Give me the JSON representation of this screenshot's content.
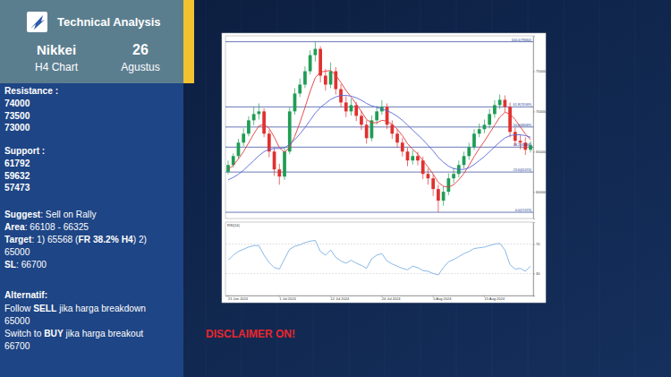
{
  "header": {
    "title": "Technical Analysis",
    "instrument": "Nikkei",
    "timeframe": "H4 Chart",
    "day": 26,
    "month": "Agustus"
  },
  "panel": {
    "resistance": {
      "label": "Resistance :",
      "values": [
        74000,
        73500,
        73000
      ]
    },
    "support": {
      "label": "Support :",
      "values": [
        61792,
        59632,
        57473
      ]
    },
    "suggestion": {
      "lines": [
        [
          {
            "text": "Suggest",
            "bold": true
          },
          {
            "text": ": Sell on Rally",
            "bold": false
          }
        ],
        [
          {
            "text": "Area",
            "bold": true
          },
          {
            "text": ": 66108 - 66325",
            "bold": false
          }
        ],
        [
          {
            "text": "Target",
            "bold": true
          },
          {
            "text": ": 1) 65568 (",
            "bold": false
          },
          {
            "text": "FR 38.2% H4",
            "bold": true
          },
          {
            "text": ") 2)",
            "bold": false
          }
        ],
        [
          {
            "text": "65000",
            "bold": false
          }
        ],
        [
          {
            "text": "SL",
            "bold": true
          },
          {
            "text": ": 66700",
            "bold": false
          }
        ]
      ]
    },
    "alternative": {
      "label": "Alternatif:",
      "lines": [
        [
          {
            "text": "Follow ",
            "bold": false
          },
          {
            "text": "SELL",
            "bold": true
          },
          {
            "text": " jika harga breakdown",
            "bold": false
          }
        ],
        [
          {
            "text": "65000",
            "bold": false
          }
        ],
        [
          {
            "text": "Switch to ",
            "bold": false
          },
          {
            "text": "BUY",
            "bold": true
          },
          {
            "text": " jika harga breakout",
            "bold": false
          }
        ],
        [
          {
            "text": "66700",
            "bold": false
          }
        ]
      ]
    }
  },
  "disclaimer": "DISCLAIMER ON!",
  "chart_data": [
    {
      "type": "candlestick",
      "categories": [
        "21 Jun 2024",
        null,
        null,
        null,
        null,
        null,
        null,
        null,
        null,
        null,
        "1 Jul 2024",
        null,
        null,
        null,
        null,
        null,
        null,
        null,
        null,
        null,
        "12 Jul 2024",
        null,
        null,
        null,
        null,
        null,
        null,
        null,
        null,
        null,
        "24 Jul 2024",
        null,
        null,
        null,
        null,
        null,
        null,
        null,
        null,
        null,
        "5 Aug 2024",
        null,
        null,
        null,
        null,
        null,
        null,
        null,
        null,
        null,
        "15 Aug 2024",
        null,
        null,
        null,
        null,
        null,
        null,
        null,
        null,
        null
      ],
      "open": [
        62500,
        63350,
        64460,
        66130,
        67240,
        68900,
        69680,
        70010,
        67240,
        65020,
        62800,
        61910,
        65020,
        70010,
        72230,
        73340,
        75000,
        77000,
        77780,
        74450,
        73340,
        75000,
        72780,
        71120,
        70010,
        70790,
        69460,
        68350,
        66680,
        68900,
        70010,
        70570,
        68350,
        67240,
        66130,
        65020,
        63910,
        64460,
        63910,
        62240,
        61690,
        60360,
        58920,
        60020,
        61690,
        62240,
        63350,
        64460,
        65570,
        67240,
        67800,
        68350,
        69680,
        70790,
        71450,
        70570,
        67460,
        66350,
        66130,
        65240
      ],
      "high": [
        63900,
        64800,
        66600,
        67900,
        69400,
        70600,
        71000,
        70400,
        67700,
        65500,
        63500,
        65600,
        70500,
        72900,
        74100,
        75600,
        77600,
        78664,
        78100,
        75300,
        76100,
        75500,
        73400,
        71900,
        71600,
        71200,
        70100,
        68900,
        69500,
        70700,
        71400,
        71000,
        68900,
        67800,
        66700,
        65500,
        65200,
        65000,
        64400,
        62900,
        62200,
        60900,
        60700,
        62300,
        63000,
        63900,
        65000,
        66100,
        67800,
        68500,
        69000,
        70300,
        71400,
        72100,
        72000,
        71100,
        68000,
        67100,
        66800,
        66300
      ],
      "low": [
        62200,
        63000,
        64100,
        65700,
        66900,
        68300,
        69000,
        66800,
        64300,
        62000,
        60900,
        61500,
        64700,
        69600,
        71800,
        72900,
        74600,
        76200,
        73600,
        72600,
        72900,
        72100,
        70500,
        69300,
        69500,
        68800,
        67700,
        66000,
        66300,
        68400,
        69600,
        67800,
        66600,
        65500,
        64400,
        63200,
        63400,
        63300,
        61600,
        60900,
        59500,
        57473,
        58300,
        59600,
        61100,
        61800,
        62900,
        64000,
        65200,
        66800,
        67300,
        67900,
        69200,
        70300,
        69900,
        66800,
        65700,
        65300,
        64600,
        64900
      ],
      "close": [
        63350,
        64460,
        66130,
        67240,
        68900,
        69680,
        70010,
        67240,
        65020,
        62800,
        61910,
        65020,
        70010,
        72230,
        73340,
        75000,
        77000,
        77780,
        74450,
        73340,
        75000,
        72780,
        71120,
        70010,
        70790,
        69460,
        68350,
        66680,
        68900,
        70010,
        70570,
        68350,
        67240,
        66130,
        65020,
        63910,
        64460,
        63910,
        62240,
        61690,
        60360,
        58920,
        60020,
        61690,
        62240,
        63350,
        64460,
        65570,
        67240,
        67800,
        68350,
        69680,
        70790,
        71450,
        70570,
        67460,
        66350,
        66130,
        65240,
        65790
      ],
      "series": [
        {
          "type": "line",
          "color": "#e23a3a",
          "values": [
            62800,
            63300,
            64100,
            65000,
            66100,
            67200,
            68200,
            68400,
            67900,
            66800,
            65500,
            64900,
            65600,
            66900,
            68600,
            70500,
            72500,
            74200,
            74900,
            75000,
            75100,
            74500,
            73600,
            72600,
            71800,
            70900,
            70000,
            69000,
            68600,
            68600,
            68900,
            68800,
            68400,
            67800,
            67000,
            66000,
            65300,
            64700,
            63900,
            63100,
            62200,
            61200,
            60700,
            60600,
            60900,
            61500,
            62300,
            63300,
            64400,
            65400,
            66300,
            67300,
            68300,
            69300,
            69900,
            69700,
            69000,
            68100,
            67200,
            66500
          ]
        },
        {
          "type": "line",
          "color": "#5566d8",
          "values": [
            61500,
            61800,
            62200,
            62700,
            63300,
            63900,
            64500,
            65000,
            65300,
            65400,
            65400,
            65500,
            65900,
            66500,
            67200,
            68000,
            68900,
            69800,
            70500,
            71000,
            71500,
            71800,
            72000,
            72000,
            71900,
            71700,
            71400,
            71000,
            70700,
            70500,
            70300,
            70100,
            69800,
            69400,
            68900,
            68300,
            67700,
            67100,
            66500,
            65800,
            65100,
            64300,
            63700,
            63200,
            62900,
            62800,
            62800,
            63000,
            63400,
            63900,
            64400,
            65000,
            65600,
            66200,
            66700,
            67000,
            67100,
            67100,
            67000,
            66800
          ]
        }
      ],
      "annotations": [
        {
          "value": 78664,
          "label": "100.0(78664)"
        },
        {
          "value": 70569,
          "label": "61.8(70569)"
        },
        {
          "value": 68069,
          "label": "50.0(68069)"
        },
        {
          "value": 65568,
          "label": "38.2(65568)"
        },
        {
          "value": 62474,
          "label": "23.6(62474)"
        },
        {
          "value": 57473,
          "label": "0.0(57473)"
        }
      ],
      "ylim": [
        56700,
        79400
      ],
      "yticks": [
        60000,
        65000,
        70000,
        75000
      ],
      "grid": false,
      "tick_labels": "y"
    },
    {
      "type": "line",
      "title": "RSI(14)",
      "categories": [
        "21 Jun 2024",
        null,
        null,
        null,
        null,
        null,
        null,
        null,
        null,
        null,
        "1 Jul 2024",
        null,
        null,
        null,
        null,
        null,
        null,
        null,
        null,
        null,
        "12 Jul 2024",
        null,
        null,
        null,
        null,
        null,
        null,
        null,
        null,
        null,
        "24 Jul 2024",
        null,
        null,
        null,
        null,
        null,
        null,
        null,
        null,
        null,
        "5 Aug 2024",
        null,
        null,
        null,
        null,
        null,
        null,
        null,
        null,
        null,
        "15 Aug 2024",
        null,
        null,
        null,
        null,
        null,
        null,
        null,
        null,
        null
      ],
      "values": [
        48,
        55,
        60,
        63,
        66,
        68,
        68,
        55,
        45,
        38,
        36,
        50,
        63,
        67,
        69,
        72,
        74,
        75,
        60,
        55,
        62,
        52,
        47,
        44,
        48,
        44,
        41,
        37,
        50,
        55,
        57,
        47,
        43,
        40,
        37,
        35,
        40,
        38,
        34,
        33,
        30,
        28,
        38,
        46,
        49,
        53,
        57,
        60,
        64,
        65,
        66,
        68,
        70,
        71,
        62,
        42,
        36,
        37,
        33,
        40
      ],
      "color": "#6aa6df",
      "ylim": [
        0,
        100
      ],
      "yticks": [
        30,
        70
      ],
      "grid": true
    }
  ]
}
